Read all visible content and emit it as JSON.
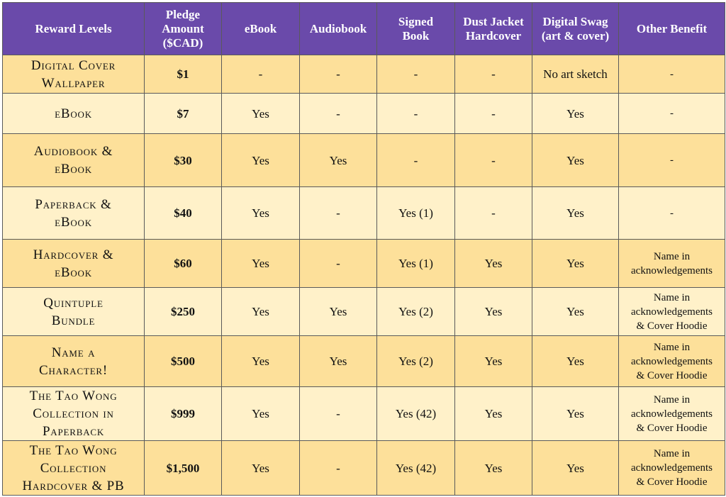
{
  "table": {
    "headers": [
      [
        "Reward Levels"
      ],
      [
        "Pledge",
        "Amount",
        "($CAD)"
      ],
      [
        "eBook"
      ],
      [
        "Audiobook"
      ],
      [
        "Signed",
        "Book"
      ],
      [
        "Dust Jacket",
        "Hardcover"
      ],
      [
        "Digital Swag",
        "(art & cover)"
      ],
      [
        "Other Benefit"
      ]
    ],
    "rows": [
      {
        "level": [
          "Digital Cover",
          "Wallpaper"
        ],
        "amount": "$1",
        "ebook": "-",
        "audiobook": "-",
        "signed": "-",
        "hardcover": "-",
        "swag": "No art sketch",
        "other": [
          "-"
        ]
      },
      {
        "level": [
          "eBook"
        ],
        "amount": "$7",
        "ebook": "Yes",
        "audiobook": "-",
        "signed": "-",
        "hardcover": "-",
        "swag": "Yes",
        "other": [
          "-"
        ]
      },
      {
        "level": [
          "Audiobook &",
          "eBook"
        ],
        "amount": "$30",
        "ebook": "Yes",
        "audiobook": "Yes",
        "signed": "-",
        "hardcover": "-",
        "swag": "Yes",
        "other": [
          "-"
        ]
      },
      {
        "level": [
          "Paperback &",
          "eBook"
        ],
        "amount": "$40",
        "ebook": "Yes",
        "audiobook": "-",
        "signed": "Yes (1)",
        "hardcover": "-",
        "swag": "Yes",
        "other": [
          "-"
        ]
      },
      {
        "level": [
          "Hardcover &",
          "eBook"
        ],
        "amount": "$60",
        "ebook": "Yes",
        "audiobook": "-",
        "signed": "Yes (1)",
        "hardcover": "Yes",
        "swag": "Yes",
        "other": [
          "Name in",
          "acknowledgements"
        ]
      },
      {
        "level": [
          "Quintuple",
          "Bundle"
        ],
        "amount": "$250",
        "ebook": "Yes",
        "audiobook": "Yes",
        "signed": "Yes (2)",
        "hardcover": "Yes",
        "swag": "Yes",
        "other": [
          "Name in",
          "acknowledgements",
          "& Cover Hoodie"
        ]
      },
      {
        "level": [
          "Name a",
          "Character!"
        ],
        "amount": "$500",
        "ebook": "Yes",
        "audiobook": "Yes",
        "signed": "Yes (2)",
        "hardcover": "Yes",
        "swag": "Yes",
        "other": [
          "Name in",
          "acknowledgements",
          "& Cover Hoodie"
        ]
      },
      {
        "level": [
          "The Tao Wong",
          "Collection in",
          "Paperback"
        ],
        "amount": "$999",
        "ebook": "Yes",
        "audiobook": "-",
        "signed": "Yes (42)",
        "hardcover": "Yes",
        "swag": "Yes",
        "other": [
          "Name in",
          "acknowledgements",
          "& Cover Hoodie"
        ]
      },
      {
        "level": [
          "The Tao Wong",
          "Collection",
          "Hardcover & PB"
        ],
        "amount": "$1,500",
        "ebook": "Yes",
        "audiobook": "-",
        "signed": "Yes (42)",
        "hardcover": "Yes",
        "swag": "Yes",
        "other": [
          "Name in",
          "acknowledgements",
          "& Cover Hoodie"
        ]
      }
    ]
  },
  "colors": {
    "header_bg": "#6a4aaa",
    "row_dark": "#fde09a",
    "row_light": "#fff1c9",
    "border": "#5a5a5a"
  }
}
